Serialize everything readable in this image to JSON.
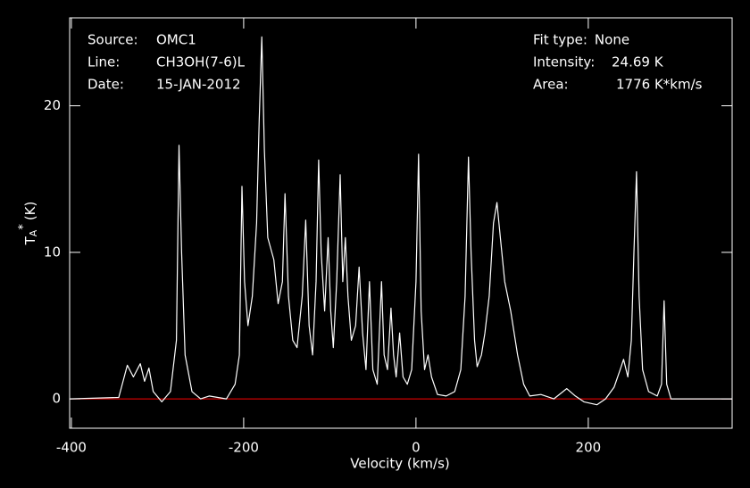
{
  "chart_data": {
    "type": "line",
    "x_label": "Velocity (km/s)",
    "y_label": "T",
    "y_label_sub": "A",
    "y_label_sup": "*",
    "y_label_unit": "(K)",
    "annotations_left": [
      {
        "key": "Source:",
        "value": "OMC1"
      },
      {
        "key": "Line:",
        "value": "CH3OH(7-6)L"
      },
      {
        "key": "Date:",
        "value": "15-JAN-2012"
      }
    ],
    "annotations_right": [
      {
        "key": "Fit type:",
        "value": "None"
      },
      {
        "key": "Intensity:",
        "value": "24.69 K"
      },
      {
        "key": "Area:",
        "value": "1776 K*km/s"
      }
    ],
    "xlim": [
      -402,
      367
    ],
    "ylim": [
      -2,
      26
    ],
    "xticks": [
      -400,
      -200,
      0,
      200
    ],
    "yticks": [
      0,
      10,
      20
    ],
    "background": "#000000",
    "color": "#ffffff",
    "zero_line_color": "#ff0000",
    "x": [
      -402,
      -345,
      -335,
      -328,
      -320,
      -315,
      -310,
      -305,
      -295,
      -285,
      -278,
      -275,
      -272,
      -268,
      -260,
      -250,
      -240,
      -220,
      -210,
      -205,
      -202,
      -199,
      -195,
      -190,
      -185,
      -182,
      -179,
      -176,
      -172,
      -165,
      -160,
      -155,
      -152,
      -148,
      -143,
      -138,
      -132,
      -128,
      -124,
      -120,
      -116,
      -113,
      -110,
      -106,
      -102,
      -99,
      -96,
      -92,
      -88,
      -85,
      -82,
      -79,
      -75,
      -70,
      -66,
      -62,
      -58,
      -54,
      -50,
      -45,
      -40,
      -37,
      -33,
      -29,
      -26,
      -23,
      -19,
      -15,
      -10,
      -5,
      0,
      3,
      6,
      10,
      14,
      18,
      25,
      35,
      45,
      52,
      57,
      61,
      64,
      68,
      71,
      76,
      80,
      85,
      90,
      94,
      98,
      103,
      110,
      118,
      125,
      132,
      145,
      160,
      175,
      185,
      195,
      210,
      220,
      230,
      237,
      241,
      246,
      250,
      253,
      256,
      259,
      263,
      270,
      280,
      285,
      288,
      291,
      296,
      320,
      367
    ],
    "values": [
      0,
      0.1,
      2.3,
      1.5,
      2.4,
      1.2,
      2.1,
      0.5,
      -0.2,
      0.5,
      4,
      17.3,
      10,
      3,
      0.5,
      0,
      0.2,
      0,
      1,
      3,
      14.5,
      8,
      5,
      7,
      12,
      19,
      24.7,
      17,
      11,
      9.5,
      6.5,
      8,
      14,
      7,
      4,
      3.5,
      7,
      12.2,
      5,
      3,
      8,
      16.3,
      10,
      6,
      11,
      6,
      3.5,
      8,
      15.3,
      8,
      11,
      7,
      4,
      5,
      9,
      4.5,
      2,
      8,
      2,
      1,
      8,
      3,
      2,
      6.2,
      3,
      1.5,
      4.5,
      1.5,
      1,
      2,
      8,
      16.7,
      6,
      2,
      3,
      1.5,
      0.3,
      0.2,
      0.5,
      2,
      7,
      16.5,
      10,
      4,
      2.2,
      3,
      4.5,
      7,
      12,
      13.4,
      11,
      8,
      6,
      3,
      1,
      0.2,
      0.3,
      0,
      0.7,
      0.2,
      -0.2,
      -0.4,
      0,
      0.8,
      2,
      2.7,
      1.5,
      4,
      10,
      15.5,
      7,
      2,
      0.5,
      0.2,
      1,
      6.7,
      1,
      0,
      0,
      0
    ]
  }
}
